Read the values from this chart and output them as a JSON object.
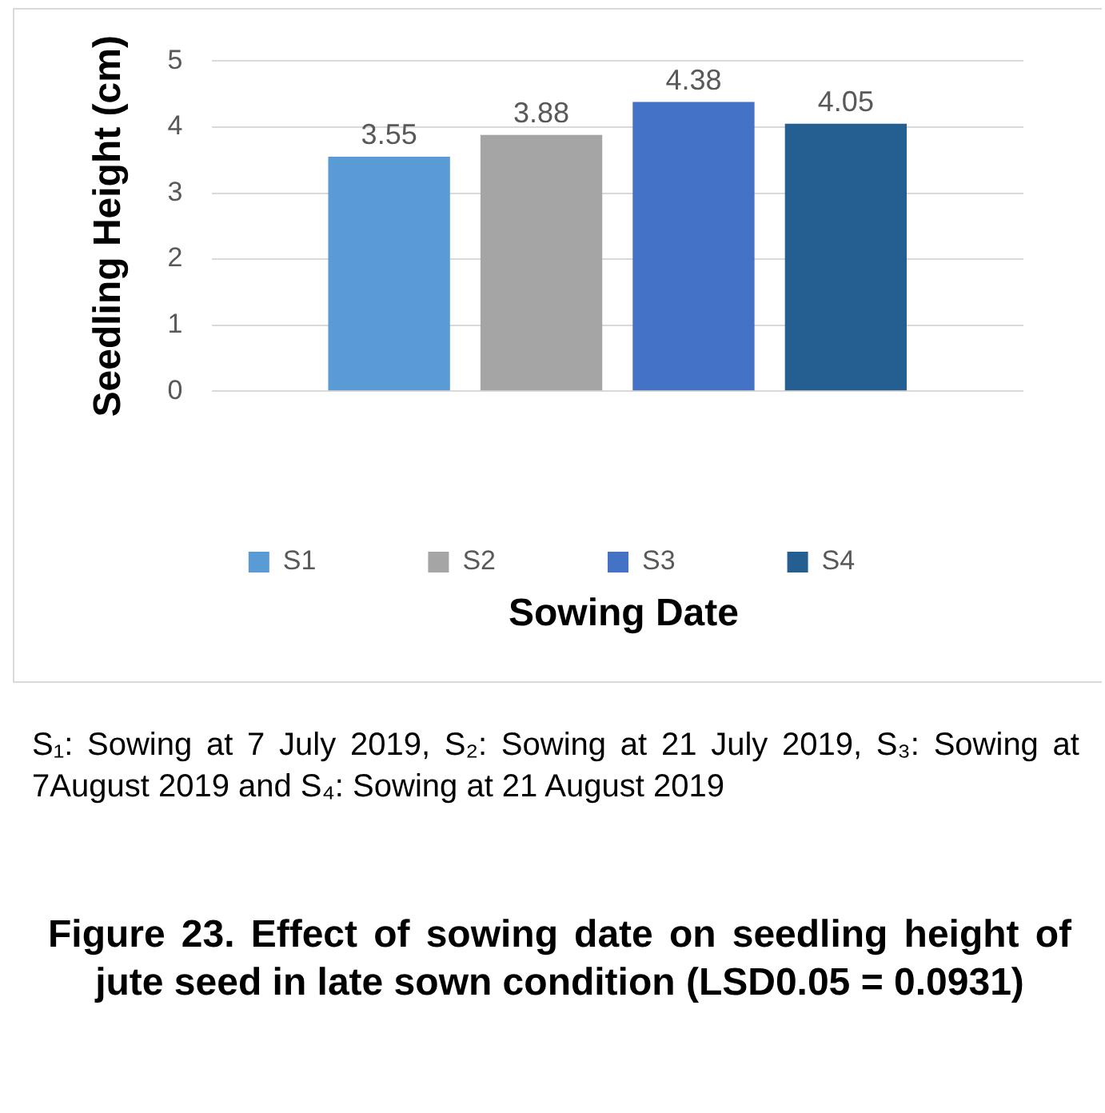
{
  "chart_data": {
    "type": "bar",
    "title": "Figure 23. Effect of sowing date on seedling height of jute seed in late sown condition (LSD0.05 = 0.0931)",
    "xlabel": "Sowing Date",
    "ylabel": "Seedling Height (cm)",
    "categories": [
      null
    ],
    "series": [
      {
        "name": "S1",
        "color": "#5b9bd5",
        "values": [
          3.55
        ]
      },
      {
        "name": "S2",
        "color": "#a5a5a5",
        "values": [
          3.88
        ]
      },
      {
        "name": "S3",
        "color": "#4472c4",
        "values": [
          4.38
        ]
      },
      {
        "name": "S4",
        "color": "#255e91",
        "values": [
          4.05
        ]
      }
    ],
    "ylim": [
      0,
      5
    ],
    "yticks": [
      0,
      1,
      2,
      3,
      4,
      5
    ],
    "grid": "y",
    "legend": "bottom",
    "data_labels": true,
    "annotations": [
      "S₁: Sowing at 7 July 2019, S₂: Sowing at 21 July 2019, S₃: Sowing at 7August 2019 and S₄: Sowing at 21 August 2019"
    ]
  }
}
